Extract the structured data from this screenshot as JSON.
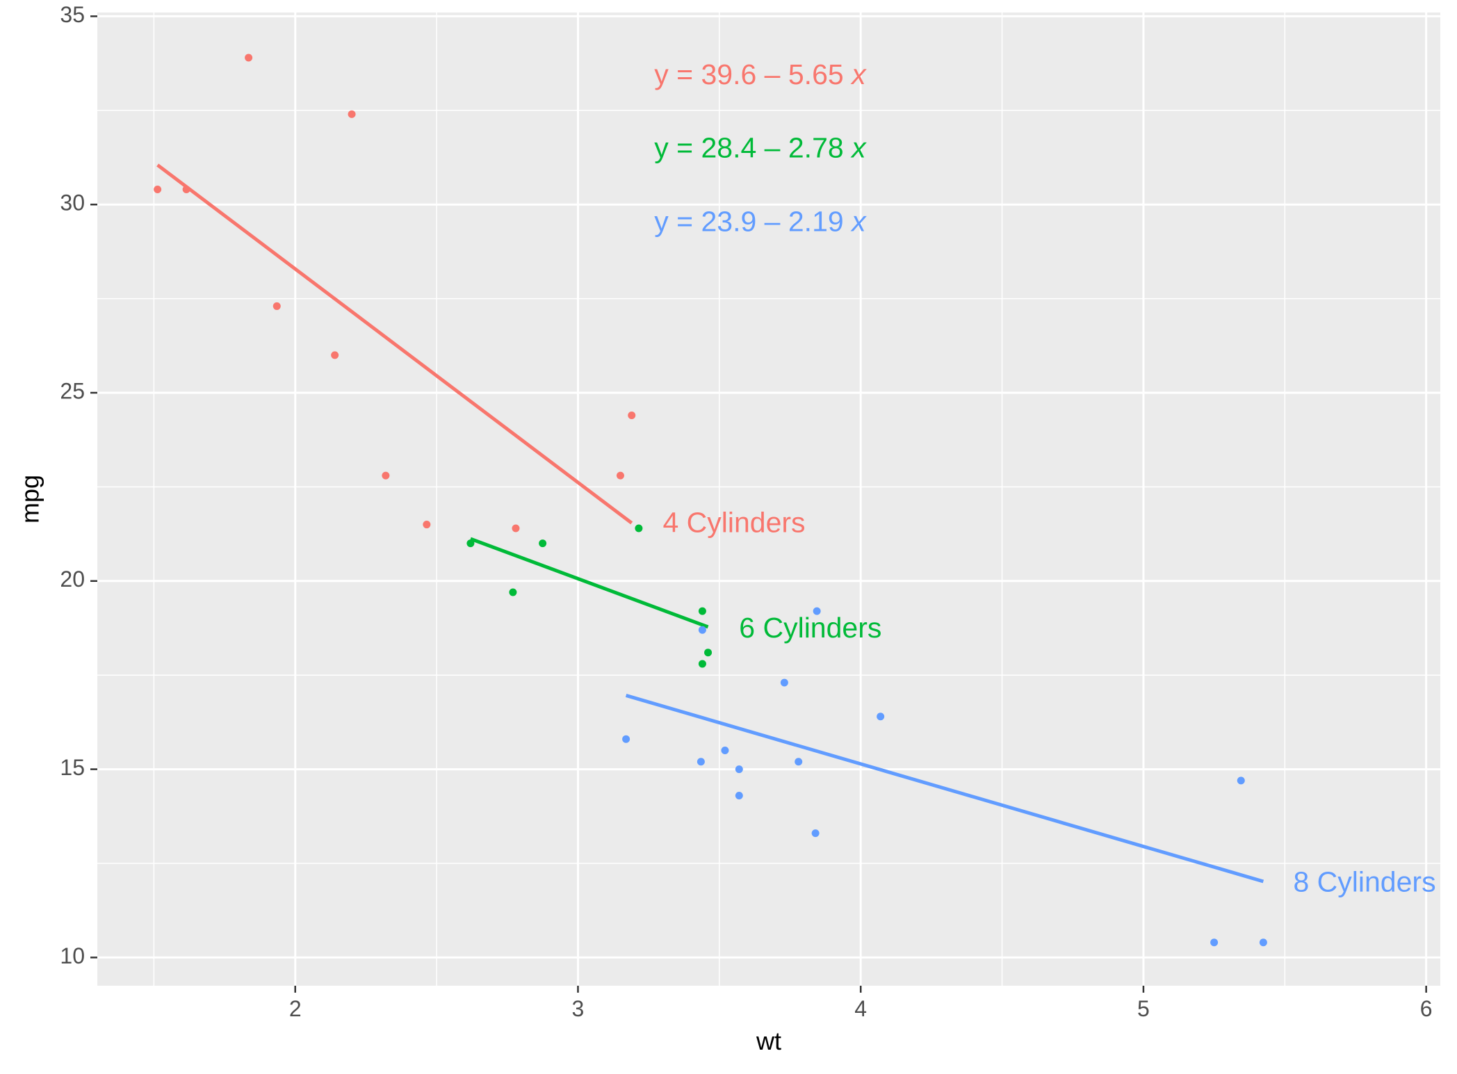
{
  "chart_data": {
    "type": "scatter",
    "title": "",
    "xlabel": "wt",
    "ylabel": "mpg",
    "xlim": [
      1.3,
      6.05
    ],
    "ylim": [
      9.25,
      35.1
    ],
    "xticks": [
      2,
      3,
      4,
      5,
      6
    ],
    "yticks": [
      10,
      15,
      20,
      25,
      30,
      35
    ],
    "x_tick_labels": [
      "2",
      "3",
      "4",
      "5",
      "6"
    ],
    "y_tick_labels": [
      "10",
      "15",
      "20",
      "25",
      "30",
      "35"
    ],
    "grid": true,
    "background": "#EBEBEB",
    "gridline_color": "#FFFFFF",
    "series": [
      {
        "color": "#F8766D",
        "label": "4 Cylinders",
        "label_pos": [
          3.3,
          21.5
        ],
        "equation": "y = 39.6 – 5.65 x",
        "equation_parts": [
          "y = 39.6 – 5.65 ",
          "x"
        ],
        "fit": {
          "x": [
            1.513,
            3.19
          ],
          "y": [
            31.05,
            21.54
          ]
        },
        "points": [
          [
            2.32,
            22.8
          ],
          [
            3.19,
            24.4
          ],
          [
            3.15,
            22.8
          ],
          [
            2.2,
            32.4
          ],
          [
            1.615,
            30.4
          ],
          [
            1.835,
            33.9
          ],
          [
            2.465,
            21.5
          ],
          [
            1.935,
            27.3
          ],
          [
            2.14,
            26.0
          ],
          [
            1.513,
            30.4
          ],
          [
            2.78,
            21.4
          ]
        ]
      },
      {
        "color": "#00BA38",
        "label": "6 Cylinders",
        "label_pos": [
          3.57,
          18.7
        ],
        "equation": "y = 28.4 – 2.78 x",
        "equation_parts": [
          "y = 28.4 – 2.78 ",
          "x"
        ],
        "fit": {
          "x": [
            2.62,
            3.46
          ],
          "y": [
            21.12,
            18.78
          ]
        },
        "points": [
          [
            2.62,
            21.0
          ],
          [
            2.875,
            21.0
          ],
          [
            3.215,
            21.4
          ],
          [
            3.46,
            18.1
          ],
          [
            3.44,
            19.2
          ],
          [
            3.44,
            17.8
          ],
          [
            2.77,
            19.7
          ]
        ]
      },
      {
        "color": "#619CFF",
        "label": "8 Cylinders",
        "label_pos": [
          5.53,
          11.95
        ],
        "equation": "y = 23.9 – 2.19 x",
        "equation_parts": [
          "y = 23.9 – 2.19 ",
          "x"
        ],
        "fit": {
          "x": [
            3.17,
            5.424
          ],
          "y": [
            16.96,
            12.02
          ]
        },
        "points": [
          [
            3.44,
            18.7
          ],
          [
            3.57,
            14.3
          ],
          [
            4.07,
            16.4
          ],
          [
            3.73,
            17.3
          ],
          [
            3.78,
            15.2
          ],
          [
            5.25,
            10.4
          ],
          [
            5.424,
            10.4
          ],
          [
            5.345,
            14.7
          ],
          [
            3.52,
            15.5
          ],
          [
            3.435,
            15.2
          ],
          [
            3.84,
            13.3
          ],
          [
            3.845,
            19.2
          ],
          [
            3.17,
            15.8
          ],
          [
            3.57,
            15.0
          ]
        ]
      }
    ],
    "equation_anchor": {
      "x": 3.27,
      "y": [
        33.4,
        31.45,
        29.5
      ]
    }
  }
}
